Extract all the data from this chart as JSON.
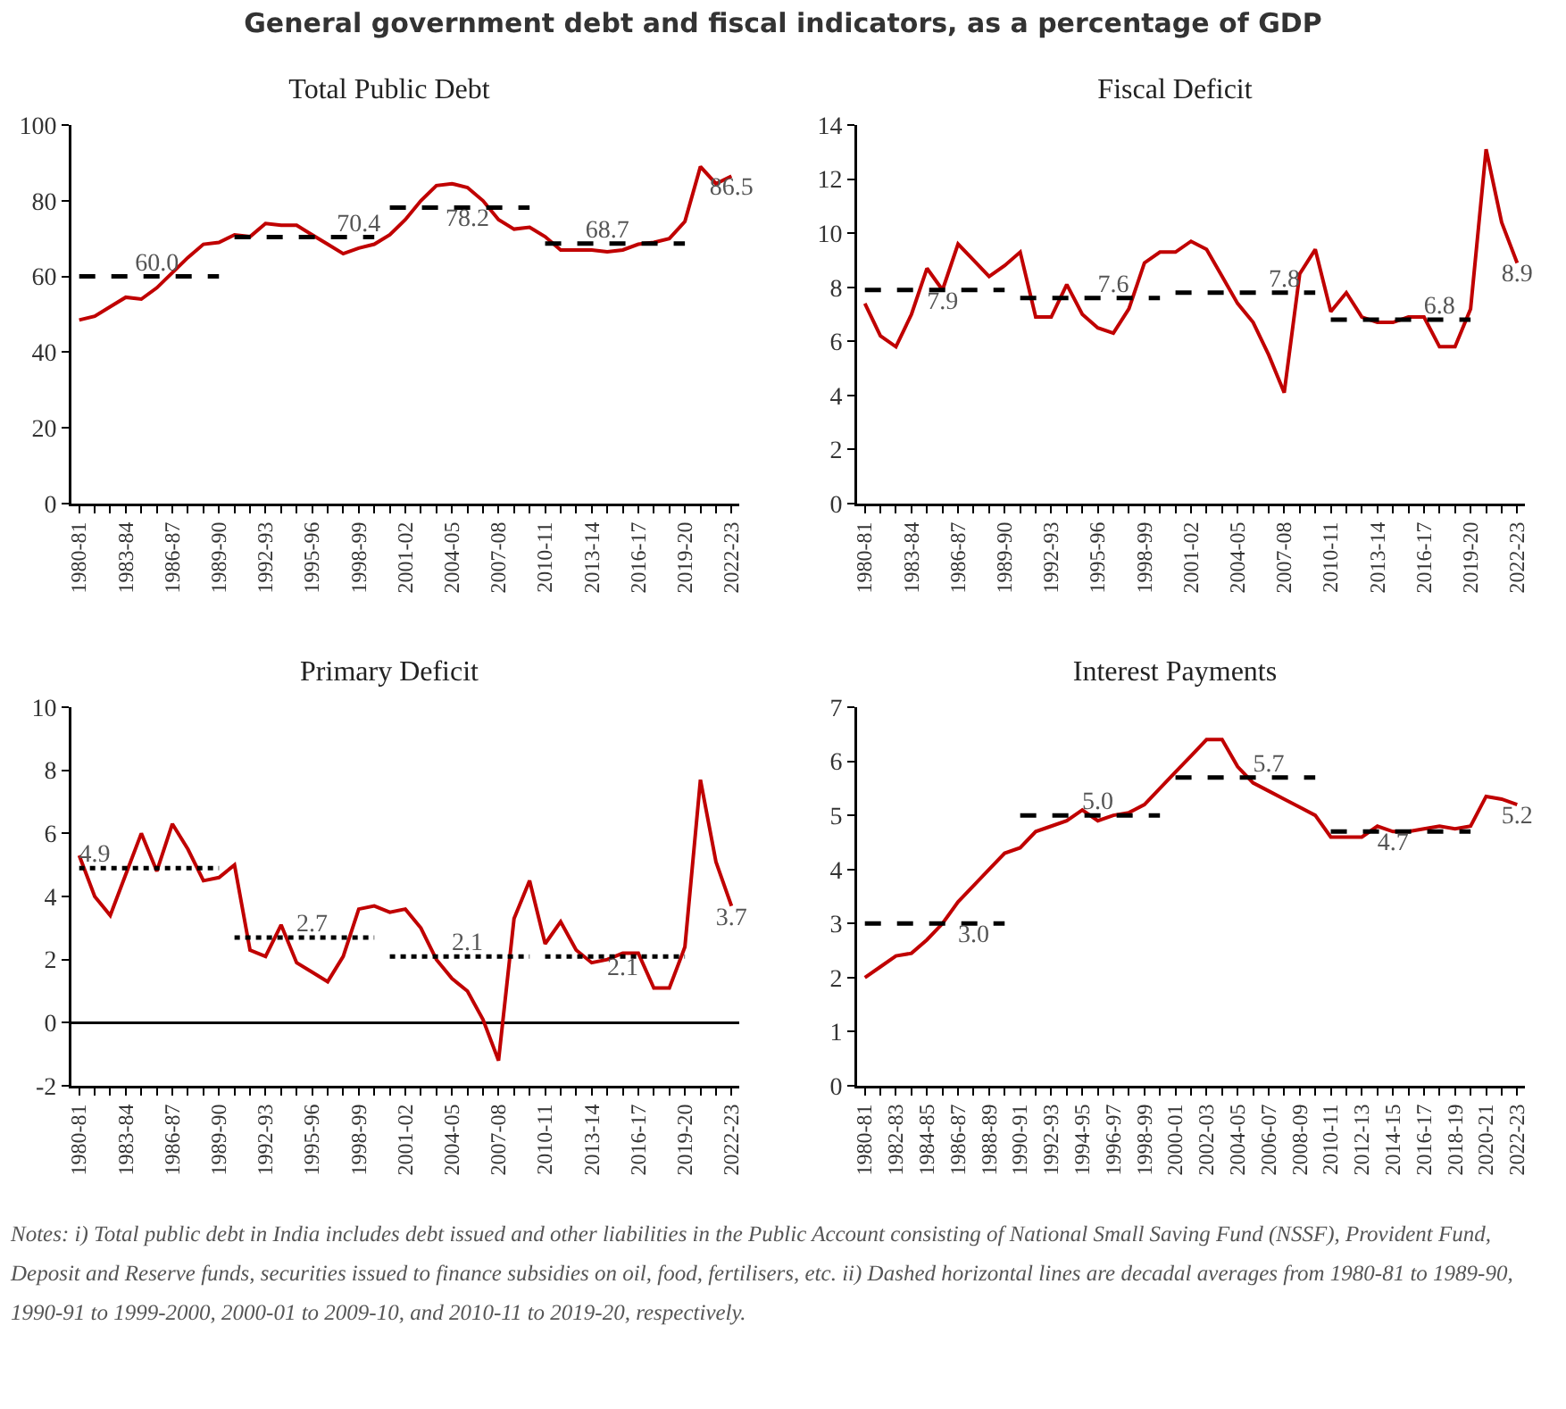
{
  "chart_data": [
    {
      "type": "line",
      "title": "Total Public Debt",
      "annotations": [
        "General government debt and fiscal indicators, as a percentage of GDP"
      ],
      "categories": [
        "1980-81",
        null,
        null,
        "1983-84",
        null,
        null,
        "1986-87",
        null,
        null,
        "1989-90",
        null,
        null,
        "1992-93",
        null,
        null,
        "1995-96",
        null,
        null,
        "1998-99",
        null,
        null,
        "2001-02",
        null,
        null,
        "2004-05",
        null,
        null,
        "2007-08",
        null,
        null,
        "2010-11",
        null,
        null,
        "2013-14",
        null,
        null,
        "2016-17",
        null,
        null,
        "2019-20",
        null,
        null,
        "2022-23"
      ],
      "series": [
        {
          "color": "#c00000",
          "line_style": "solid",
          "values": [
            48.5,
            49.5,
            52,
            54.5,
            54,
            57,
            61,
            65,
            68.5,
            69,
            71,
            70.5,
            74,
            73.5,
            73.5,
            71,
            68.5,
            66,
            67.5,
            68.5,
            71,
            75,
            80,
            84,
            84.5,
            83.5,
            80,
            75,
            72.5,
            73,
            70.5,
            67,
            67,
            67,
            66.5,
            67,
            68.5,
            69,
            70,
            74.5,
            89,
            84.5,
            86.5
          ],
          "value_labels": [
            null,
            null,
            null,
            null,
            null,
            null,
            null,
            null,
            null,
            null,
            null,
            null,
            null,
            null,
            null,
            null,
            null,
            null,
            null,
            null,
            null,
            null,
            null,
            null,
            null,
            null,
            null,
            null,
            null,
            null,
            null,
            null,
            null,
            null,
            null,
            null,
            null,
            null,
            null,
            null,
            null,
            null,
            "86.5"
          ]
        },
        {
          "type": "line",
          "color": "#000000",
          "line_style": "dashed",
          "values": [
            60.0,
            60.0,
            60.0,
            60.0,
            60.0,
            60.0,
            60.0,
            60.0,
            60.0,
            60.0,
            null,
            null,
            null,
            null,
            null,
            null,
            null,
            null,
            null,
            null,
            null,
            null,
            null,
            null,
            null,
            null,
            null,
            null,
            null,
            null,
            null,
            null,
            null,
            null,
            null,
            null,
            null,
            null,
            null,
            null,
            null,
            null,
            null
          ],
          "value_labels": [
            null,
            null,
            null,
            null,
            null,
            "60.0",
            null,
            null,
            null,
            null,
            null,
            null,
            null,
            null,
            null,
            null,
            null,
            null,
            null,
            null,
            null,
            null,
            null,
            null,
            null,
            null,
            null,
            null,
            null,
            null,
            null,
            null,
            null,
            null,
            null,
            null,
            null,
            null,
            null,
            null,
            null,
            null,
            null
          ]
        },
        {
          "type": "line",
          "color": "#000000",
          "line_style": "dashed",
          "values": [
            null,
            null,
            null,
            null,
            null,
            null,
            null,
            null,
            null,
            null,
            70.4,
            70.4,
            70.4,
            70.4,
            70.4,
            70.4,
            70.4,
            70.4,
            70.4,
            70.4,
            null,
            null,
            null,
            null,
            null,
            null,
            null,
            null,
            null,
            null,
            null,
            null,
            null,
            null,
            null,
            null,
            null,
            null,
            null,
            null,
            null,
            null,
            null
          ],
          "value_labels": [
            null,
            null,
            null,
            null,
            null,
            null,
            null,
            null,
            null,
            null,
            null,
            null,
            null,
            null,
            null,
            null,
            null,
            null,
            "70.4",
            null,
            null,
            null,
            null,
            null,
            null,
            null,
            null,
            null,
            null,
            null,
            null,
            null,
            null,
            null,
            null,
            null,
            null,
            null,
            null,
            null,
            null,
            null,
            null
          ]
        },
        {
          "type": "line",
          "color": "#000000",
          "line_style": "dashed",
          "values": [
            null,
            null,
            null,
            null,
            null,
            null,
            null,
            null,
            null,
            null,
            null,
            null,
            null,
            null,
            null,
            null,
            null,
            null,
            null,
            null,
            78.2,
            78.2,
            78.2,
            78.2,
            78.2,
            78.2,
            78.2,
            78.2,
            78.2,
            78.2,
            null,
            null,
            null,
            null,
            null,
            null,
            null,
            null,
            null,
            null,
            null,
            null,
            null
          ],
          "value_labels": [
            null,
            null,
            null,
            null,
            null,
            null,
            null,
            null,
            null,
            null,
            null,
            null,
            null,
            null,
            null,
            null,
            null,
            null,
            null,
            null,
            null,
            null,
            null,
            null,
            null,
            "78.2",
            null,
            null,
            null,
            null,
            null,
            null,
            null,
            null,
            null,
            null,
            null,
            null,
            null,
            null,
            null,
            null,
            null
          ]
        },
        {
          "type": "line",
          "color": "#000000",
          "line_style": "dashed",
          "values": [
            null,
            null,
            null,
            null,
            null,
            null,
            null,
            null,
            null,
            null,
            null,
            null,
            null,
            null,
            null,
            null,
            null,
            null,
            null,
            null,
            null,
            null,
            null,
            null,
            null,
            null,
            null,
            null,
            null,
            null,
            68.7,
            68.7,
            68.7,
            68.7,
            68.7,
            68.7,
            68.7,
            68.7,
            68.7,
            68.7,
            null,
            null,
            null
          ],
          "value_labels": [
            null,
            null,
            null,
            null,
            null,
            null,
            null,
            null,
            null,
            null,
            null,
            null,
            null,
            null,
            null,
            null,
            null,
            null,
            null,
            null,
            null,
            null,
            null,
            null,
            null,
            null,
            null,
            null,
            null,
            null,
            null,
            null,
            null,
            null,
            "68.7",
            null,
            null,
            null,
            null,
            null,
            null,
            null,
            null
          ]
        }
      ],
      "ylim": [
        0,
        100
      ],
      "yticks": [
        0,
        20,
        40,
        60,
        80,
        100
      ]
    },
    {
      "type": "line",
      "title": "Fiscal Deficit",
      "categories": [
        "1980-81",
        null,
        null,
        "1983-84",
        null,
        null,
        "1986-87",
        null,
        null,
        "1989-90",
        null,
        null,
        "1992-93",
        null,
        null,
        "1995-96",
        null,
        null,
        "1998-99",
        null,
        null,
        "2001-02",
        null,
        null,
        "2004-05",
        null,
        null,
        "2007-08",
        null,
        null,
        "2010-11",
        null,
        null,
        "2013-14",
        null,
        null,
        "2016-17",
        null,
        null,
        "2019-20",
        null,
        null,
        "2022-23"
      ],
      "series": [
        {
          "color": "#c00000",
          "line_style": "solid",
          "values": [
            7.4,
            6.2,
            5.8,
            7.0,
            8.7,
            7.9,
            9.6,
            9.0,
            8.4,
            8.8,
            9.3,
            6.9,
            6.9,
            8.1,
            7.0,
            6.5,
            6.3,
            7.2,
            8.9,
            9.3,
            9.3,
            9.7,
            9.4,
            8.4,
            7.4,
            6.7,
            5.5,
            4.1,
            8.5,
            9.4,
            7.1,
            7.8,
            6.9,
            6.7,
            6.7,
            6.9,
            6.9,
            5.8,
            5.8,
            7.2,
            13.1,
            10.4,
            8.9
          ],
          "value_labels": [
            null,
            null,
            null,
            null,
            null,
            null,
            null,
            null,
            null,
            null,
            null,
            null,
            null,
            null,
            null,
            null,
            null,
            null,
            null,
            null,
            null,
            null,
            null,
            null,
            null,
            null,
            null,
            null,
            null,
            null,
            null,
            null,
            null,
            null,
            null,
            null,
            null,
            null,
            null,
            null,
            null,
            null,
            "8.9"
          ]
        },
        {
          "type": "line",
          "color": "#000000",
          "line_style": "dashed",
          "values": [
            7.9,
            7.9,
            7.9,
            7.9,
            7.9,
            7.9,
            7.9,
            7.9,
            7.9,
            7.9,
            null,
            null,
            null,
            null,
            null,
            null,
            null,
            null,
            null,
            null,
            null,
            null,
            null,
            null,
            null,
            null,
            null,
            null,
            null,
            null,
            null,
            null,
            null,
            null,
            null,
            null,
            null,
            null,
            null,
            null,
            null,
            null,
            null
          ],
          "value_labels": [
            null,
            null,
            null,
            null,
            null,
            "7.9",
            null,
            null,
            null,
            null,
            null,
            null,
            null,
            null,
            null,
            null,
            null,
            null,
            null,
            null,
            null,
            null,
            null,
            null,
            null,
            null,
            null,
            null,
            null,
            null,
            null,
            null,
            null,
            null,
            null,
            null,
            null,
            null,
            null,
            null,
            null,
            null,
            null
          ]
        },
        {
          "type": "line",
          "color": "#000000",
          "line_style": "dashed",
          "values": [
            null,
            null,
            null,
            null,
            null,
            null,
            null,
            null,
            null,
            null,
            7.6,
            7.6,
            7.6,
            7.6,
            7.6,
            7.6,
            7.6,
            7.6,
            7.6,
            7.6,
            null,
            null,
            null,
            null,
            null,
            null,
            null,
            null,
            null,
            null,
            null,
            null,
            null,
            null,
            null,
            null,
            null,
            null,
            null,
            null,
            null,
            null,
            null
          ],
          "value_labels": [
            null,
            null,
            null,
            null,
            null,
            null,
            null,
            null,
            null,
            null,
            null,
            null,
            null,
            null,
            null,
            null,
            "7.6",
            null,
            null,
            null,
            null,
            null,
            null,
            null,
            null,
            null,
            null,
            null,
            null,
            null,
            null,
            null,
            null,
            null,
            null,
            null,
            null,
            null,
            null,
            null,
            null,
            null,
            null
          ]
        },
        {
          "type": "line",
          "color": "#000000",
          "line_style": "dashed",
          "values": [
            null,
            null,
            null,
            null,
            null,
            null,
            null,
            null,
            null,
            null,
            null,
            null,
            null,
            null,
            null,
            null,
            null,
            null,
            null,
            null,
            7.8,
            7.8,
            7.8,
            7.8,
            7.8,
            7.8,
            7.8,
            7.8,
            7.8,
            7.8,
            null,
            null,
            null,
            null,
            null,
            null,
            null,
            null,
            null,
            null,
            null,
            null,
            null
          ],
          "value_labels": [
            null,
            null,
            null,
            null,
            null,
            null,
            null,
            null,
            null,
            null,
            null,
            null,
            null,
            null,
            null,
            null,
            null,
            null,
            null,
            null,
            null,
            null,
            null,
            null,
            null,
            null,
            null,
            "7.8",
            null,
            null,
            null,
            null,
            null,
            null,
            null,
            null,
            null,
            null,
            null,
            null,
            null,
            null,
            null
          ]
        },
        {
          "type": "line",
          "color": "#000000",
          "line_style": "dashed",
          "values": [
            null,
            null,
            null,
            null,
            null,
            null,
            null,
            null,
            null,
            null,
            null,
            null,
            null,
            null,
            null,
            null,
            null,
            null,
            null,
            null,
            null,
            null,
            null,
            null,
            null,
            null,
            null,
            null,
            null,
            null,
            6.8,
            6.8,
            6.8,
            6.8,
            6.8,
            6.8,
            6.8,
            6.8,
            6.8,
            6.8,
            null,
            null,
            null
          ],
          "value_labels": [
            null,
            null,
            null,
            null,
            null,
            null,
            null,
            null,
            null,
            null,
            null,
            null,
            null,
            null,
            null,
            null,
            null,
            null,
            null,
            null,
            null,
            null,
            null,
            null,
            null,
            null,
            null,
            null,
            null,
            null,
            null,
            null,
            null,
            null,
            null,
            null,
            null,
            "6.8",
            null,
            null,
            null,
            null,
            null
          ]
        }
      ],
      "ylim": [
        0,
        14
      ],
      "yticks": [
        0,
        2,
        4,
        6,
        8,
        10,
        12,
        14
      ]
    },
    {
      "type": "line",
      "title": "Primary Deficit",
      "categories": [
        "1980-81",
        null,
        null,
        "1983-84",
        null,
        null,
        "1986-87",
        null,
        null,
        "1989-90",
        null,
        null,
        "1992-93",
        null,
        null,
        "1995-96",
        null,
        null,
        "1998-99",
        null,
        null,
        "2001-02",
        null,
        null,
        "2004-05",
        null,
        null,
        "2007-08",
        null,
        null,
        "2010-11",
        null,
        null,
        "2013-14",
        null,
        null,
        "2016-17",
        null,
        null,
        "2019-20",
        null,
        null,
        "2022-23"
      ],
      "series": [
        {
          "color": "#c00000",
          "line_style": "solid",
          "values": [
            5.3,
            4.0,
            3.4,
            4.7,
            6.0,
            4.8,
            6.3,
            5.5,
            4.5,
            4.6,
            5.0,
            2.3,
            2.1,
            3.1,
            1.9,
            1.6,
            1.3,
            2.1,
            3.6,
            3.7,
            3.5,
            3.6,
            3.0,
            2.0,
            1.4,
            1.0,
            0.1,
            -1.2,
            3.3,
            4.5,
            2.5,
            3.2,
            2.3,
            1.9,
            2.0,
            2.2,
            2.2,
            1.1,
            1.1,
            2.4,
            7.7,
            5.1,
            3.7
          ],
          "value_labels": [
            null,
            null,
            null,
            null,
            null,
            null,
            null,
            null,
            null,
            null,
            null,
            null,
            null,
            null,
            null,
            null,
            null,
            null,
            null,
            null,
            null,
            null,
            null,
            null,
            null,
            null,
            null,
            null,
            null,
            null,
            null,
            null,
            null,
            null,
            null,
            null,
            null,
            null,
            null,
            null,
            null,
            null,
            "3.7"
          ]
        },
        {
          "type": "line",
          "color": "#000000",
          "line_style": "dotted",
          "values": [
            4.9,
            4.9,
            4.9,
            4.9,
            4.9,
            4.9,
            4.9,
            4.9,
            4.9,
            4.9,
            null,
            null,
            null,
            null,
            null,
            null,
            null,
            null,
            null,
            null,
            null,
            null,
            null,
            null,
            null,
            null,
            null,
            null,
            null,
            null,
            null,
            null,
            null,
            null,
            null,
            null,
            null,
            null,
            null,
            null,
            null,
            null,
            null
          ],
          "value_labels": [
            null,
            "4.9",
            null,
            null,
            null,
            null,
            null,
            null,
            null,
            null,
            null,
            null,
            null,
            null,
            null,
            null,
            null,
            null,
            null,
            null,
            null,
            null,
            null,
            null,
            null,
            null,
            null,
            null,
            null,
            null,
            null,
            null,
            null,
            null,
            null,
            null,
            null,
            null,
            null,
            null,
            null,
            null,
            null
          ]
        },
        {
          "type": "line",
          "color": "#000000",
          "line_style": "dotted",
          "values": [
            null,
            null,
            null,
            null,
            null,
            null,
            null,
            null,
            null,
            null,
            2.7,
            2.7,
            2.7,
            2.7,
            2.7,
            2.7,
            2.7,
            2.7,
            2.7,
            2.7,
            null,
            null,
            null,
            null,
            null,
            null,
            null,
            null,
            null,
            null,
            null,
            null,
            null,
            null,
            null,
            null,
            null,
            null,
            null,
            null,
            null,
            null,
            null
          ],
          "value_labels": [
            null,
            null,
            null,
            null,
            null,
            null,
            null,
            null,
            null,
            null,
            null,
            null,
            null,
            null,
            null,
            "2.7",
            null,
            null,
            null,
            null,
            null,
            null,
            null,
            null,
            null,
            null,
            null,
            null,
            null,
            null,
            null,
            null,
            null,
            null,
            null,
            null,
            null,
            null,
            null,
            null,
            null,
            null,
            null
          ]
        },
        {
          "type": "line",
          "color": "#000000",
          "line_style": "dotted",
          "values": [
            null,
            null,
            null,
            null,
            null,
            null,
            null,
            null,
            null,
            null,
            null,
            null,
            null,
            null,
            null,
            null,
            null,
            null,
            null,
            null,
            2.1,
            2.1,
            2.1,
            2.1,
            2.1,
            2.1,
            2.1,
            2.1,
            2.1,
            2.1,
            null,
            null,
            null,
            null,
            null,
            null,
            null,
            null,
            null,
            null,
            null,
            null,
            null
          ],
          "value_labels": [
            null,
            null,
            null,
            null,
            null,
            null,
            null,
            null,
            null,
            null,
            null,
            null,
            null,
            null,
            null,
            null,
            null,
            null,
            null,
            null,
            null,
            null,
            null,
            null,
            null,
            "2.1",
            null,
            null,
            null,
            null,
            null,
            null,
            null,
            null,
            null,
            null,
            null,
            null,
            null,
            null,
            null,
            null,
            null
          ]
        },
        {
          "type": "line",
          "color": "#000000",
          "line_style": "dotted",
          "values": [
            null,
            null,
            null,
            null,
            null,
            null,
            null,
            null,
            null,
            null,
            null,
            null,
            null,
            null,
            null,
            null,
            null,
            null,
            null,
            null,
            null,
            null,
            null,
            null,
            null,
            null,
            null,
            null,
            null,
            null,
            2.1,
            2.1,
            2.1,
            2.1,
            2.1,
            2.1,
            2.1,
            2.1,
            2.1,
            2.1,
            null,
            null,
            null
          ],
          "value_labels": [
            null,
            null,
            null,
            null,
            null,
            null,
            null,
            null,
            null,
            null,
            null,
            null,
            null,
            null,
            null,
            null,
            null,
            null,
            null,
            null,
            null,
            null,
            null,
            null,
            null,
            null,
            null,
            null,
            null,
            null,
            null,
            null,
            null,
            null,
            null,
            "2.1",
            null,
            null,
            null,
            null,
            null,
            null,
            null
          ]
        }
      ],
      "ylim": [
        -2,
        10
      ],
      "yticks": [
        -2,
        0,
        2,
        4,
        6,
        8,
        10
      ]
    },
    {
      "type": "line",
      "title": "Interest Payments",
      "annotations": [
        "Notes: i) Total public debt in India includes debt issued and other liabilities in the Public Account consisting of National Small Saving Fund (NSSF), Provident Fund, Deposit and Reserve funds, securities issued to finance subsidies on oil, food, fertilisers, etc. ii) Dashed horizontal lines are decadal averages from 1980-81 to 1989-90, 1990-91 to 1999-2000, 2000-01 to 2009-10, and 2010-11 to 2019-20, respectively."
      ],
      "categories": [
        "1980-81",
        null,
        "1982-83",
        null,
        "1984-85",
        null,
        "1986-87",
        null,
        "1988-89",
        null,
        "1990-91",
        null,
        "1992-93",
        null,
        "1994-95",
        null,
        "1996-97",
        null,
        "1998-99",
        null,
        "2000-01",
        null,
        "2002-03",
        null,
        "2004-05",
        null,
        "2006-07",
        null,
        "2008-09",
        null,
        "2010-11",
        null,
        "2012-13",
        null,
        "2014-15",
        null,
        "2016-17",
        null,
        "2018-19",
        null,
        "2020-21",
        null,
        "2022-23"
      ],
      "series": [
        {
          "color": "#c00000",
          "line_style": "solid",
          "values": [
            2.0,
            2.2,
            2.4,
            2.45,
            2.7,
            3.0,
            3.4,
            3.7,
            4.0,
            4.3,
            4.4,
            4.7,
            4.8,
            4.9,
            5.1,
            4.9,
            5.0,
            5.05,
            5.2,
            5.5,
            5.8,
            6.1,
            6.4,
            6.4,
            5.9,
            5.6,
            5.45,
            5.3,
            5.15,
            5.0,
            4.6,
            4.6,
            4.6,
            4.8,
            4.7,
            4.7,
            4.75,
            4.8,
            4.75,
            4.8,
            5.35,
            5.3,
            5.2
          ],
          "value_labels": [
            null,
            null,
            null,
            null,
            null,
            null,
            null,
            null,
            null,
            null,
            null,
            null,
            null,
            null,
            null,
            null,
            null,
            null,
            null,
            null,
            null,
            null,
            null,
            null,
            null,
            null,
            null,
            null,
            null,
            null,
            null,
            null,
            null,
            null,
            null,
            null,
            null,
            null,
            null,
            null,
            null,
            null,
            "5.2"
          ]
        },
        {
          "type": "line",
          "color": "#000000",
          "line_style": "dashed",
          "values": [
            3.0,
            3.0,
            3.0,
            3.0,
            3.0,
            3.0,
            3.0,
            3.0,
            3.0,
            3.0,
            null,
            null,
            null,
            null,
            null,
            null,
            null,
            null,
            null,
            null,
            null,
            null,
            null,
            null,
            null,
            null,
            null,
            null,
            null,
            null,
            null,
            null,
            null,
            null,
            null,
            null,
            null,
            null,
            null,
            null,
            null,
            null,
            null
          ],
          "value_labels": [
            null,
            null,
            null,
            null,
            null,
            null,
            null,
            "3.0",
            null,
            null,
            null,
            null,
            null,
            null,
            null,
            null,
            null,
            null,
            null,
            null,
            null,
            null,
            null,
            null,
            null,
            null,
            null,
            null,
            null,
            null,
            null,
            null,
            null,
            null,
            null,
            null,
            null,
            null,
            null,
            null,
            null,
            null,
            null
          ]
        },
        {
          "type": "line",
          "color": "#000000",
          "line_style": "dashed",
          "values": [
            null,
            null,
            null,
            null,
            null,
            null,
            null,
            null,
            null,
            null,
            5.0,
            5.0,
            5.0,
            5.0,
            5.0,
            5.0,
            5.0,
            5.0,
            5.0,
            5.0,
            null,
            null,
            null,
            null,
            null,
            null,
            null,
            null,
            null,
            null,
            null,
            null,
            null,
            null,
            null,
            null,
            null,
            null,
            null,
            null,
            null,
            null,
            null
          ],
          "value_labels": [
            null,
            null,
            null,
            null,
            null,
            null,
            null,
            null,
            null,
            null,
            null,
            null,
            null,
            null,
            null,
            "5.0",
            null,
            null,
            null,
            null,
            null,
            null,
            null,
            null,
            null,
            null,
            null,
            null,
            null,
            null,
            null,
            null,
            null,
            null,
            null,
            null,
            null,
            null,
            null,
            null,
            null,
            null,
            null
          ]
        },
        {
          "type": "line",
          "color": "#000000",
          "line_style": "dashed",
          "values": [
            null,
            null,
            null,
            null,
            null,
            null,
            null,
            null,
            null,
            null,
            null,
            null,
            null,
            null,
            null,
            null,
            null,
            null,
            null,
            null,
            5.7,
            5.7,
            5.7,
            5.7,
            5.7,
            5.7,
            5.7,
            5.7,
            5.7,
            5.7,
            null,
            null,
            null,
            null,
            null,
            null,
            null,
            null,
            null,
            null,
            null,
            null,
            null
          ],
          "value_labels": [
            null,
            null,
            null,
            null,
            null,
            null,
            null,
            null,
            null,
            null,
            null,
            null,
            null,
            null,
            null,
            null,
            null,
            null,
            null,
            null,
            null,
            null,
            null,
            null,
            null,
            null,
            "5.7",
            null,
            null,
            null,
            null,
            null,
            null,
            null,
            null,
            null,
            null,
            null,
            null,
            null,
            null,
            null,
            null
          ]
        },
        {
          "type": "line",
          "color": "#000000",
          "line_style": "dashed",
          "values": [
            null,
            null,
            null,
            null,
            null,
            null,
            null,
            null,
            null,
            null,
            null,
            null,
            null,
            null,
            null,
            null,
            null,
            null,
            null,
            null,
            null,
            null,
            null,
            null,
            null,
            null,
            null,
            null,
            null,
            null,
            4.7,
            4.7,
            4.7,
            4.7,
            4.7,
            4.7,
            4.7,
            4.7,
            4.7,
            4.7,
            null,
            null,
            null
          ],
          "value_labels": [
            null,
            null,
            null,
            null,
            null,
            null,
            null,
            null,
            null,
            null,
            null,
            null,
            null,
            null,
            null,
            null,
            null,
            null,
            null,
            null,
            null,
            null,
            null,
            null,
            null,
            null,
            null,
            null,
            null,
            null,
            null,
            null,
            null,
            null,
            "4.7",
            null,
            null,
            null,
            null,
            null,
            null,
            null,
            null
          ]
        }
      ],
      "ylim": [
        0,
        7
      ],
      "yticks": [
        0,
        1,
        2,
        3,
        4,
        5,
        6,
        7
      ]
    }
  ]
}
